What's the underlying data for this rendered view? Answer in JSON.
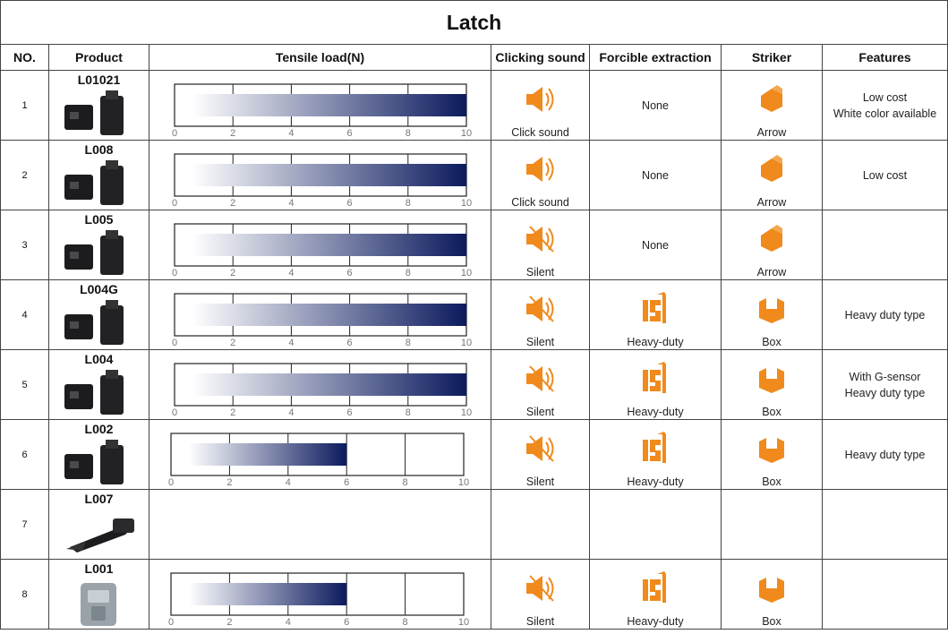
{
  "title": "Latch",
  "headers": {
    "no": "NO.",
    "product": "Product",
    "tensile": "Tensile load(N)",
    "clicking": "Clicking sound",
    "forcible": "Forcible extraction",
    "striker": "Striker",
    "features": "Features"
  },
  "tick_labels": [
    "0",
    "2",
    "4",
    "6",
    "8",
    "10"
  ],
  "colors": {
    "bar_dark": "#0b1a5e",
    "icon_orange": "#f08a1c"
  },
  "rows": [
    {
      "no": "1",
      "code": "L01021",
      "load": 10,
      "sound": "Click sound",
      "sound_icon": "speaker-icon",
      "extraction": "None",
      "extraction_icon": "",
      "striker": "Arrow",
      "striker_icon": "arrow-striker-icon",
      "feature1": "Low cost",
      "feature2": "White color available"
    },
    {
      "no": "2",
      "code": "L008",
      "load": 10,
      "sound": "Click sound",
      "sound_icon": "speaker-icon",
      "extraction": "None",
      "extraction_icon": "",
      "striker": "Arrow",
      "striker_icon": "arrow-striker-icon",
      "feature1": "Low cost",
      "feature2": ""
    },
    {
      "no": "3",
      "code": "L005",
      "load": 10,
      "sound": "Silent",
      "sound_icon": "speaker-muted-icon",
      "extraction": "None",
      "extraction_icon": "",
      "striker": "Arrow",
      "striker_icon": "arrow-striker-icon",
      "feature1": "",
      "feature2": ""
    },
    {
      "no": "4",
      "code": "L004G",
      "load": 10,
      "sound": "Silent",
      "sound_icon": "speaker-muted-icon",
      "extraction": "Heavy-duty",
      "extraction_icon": "heavy-duty-icon",
      "striker": "Box",
      "striker_icon": "box-striker-icon",
      "feature1": "Heavy duty type",
      "feature2": ""
    },
    {
      "no": "5",
      "code": "L004",
      "load": 10,
      "sound": "Silent",
      "sound_icon": "speaker-muted-icon",
      "extraction": "Heavy-duty",
      "extraction_icon": "heavy-duty-icon",
      "striker": "Box",
      "striker_icon": "box-striker-icon",
      "feature1": "With G-sensor",
      "feature2": "Heavy duty type"
    },
    {
      "no": "6",
      "code": "L002",
      "load": 6,
      "sound": "Silent",
      "sound_icon": "speaker-muted-icon",
      "extraction": "Heavy-duty",
      "extraction_icon": "heavy-duty-icon",
      "striker": "Box",
      "striker_icon": "box-striker-icon",
      "feature1": "Heavy duty type",
      "feature2": ""
    },
    {
      "no": "7",
      "code": "L007",
      "load": null,
      "sound": "",
      "sound_icon": "",
      "extraction": "",
      "extraction_icon": "",
      "striker": "",
      "striker_icon": "",
      "feature1": "",
      "feature2": ""
    },
    {
      "no": "8",
      "code": "L001",
      "load": 6,
      "sound": "Silent",
      "sound_icon": "speaker-muted-icon",
      "extraction": "Heavy-duty",
      "extraction_icon": "heavy-duty-icon",
      "striker": "Box",
      "striker_icon": "box-striker-icon",
      "feature1": "",
      "feature2": ""
    }
  ]
}
